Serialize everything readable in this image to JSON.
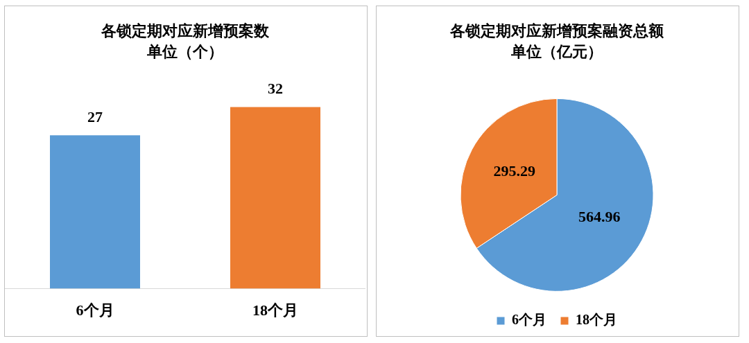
{
  "chart_data": [
    {
      "type": "bar",
      "title": "各锁定期对应新增预案数",
      "subtitle": "单位（个）",
      "categories": [
        "6个月",
        "18个月"
      ],
      "values": [
        27,
        32
      ],
      "colors": [
        "#5b9bd5",
        "#ed7d31"
      ],
      "tick_labels": "x",
      "data_labels": true,
      "grid": false,
      "legend": false
    },
    {
      "type": "pie",
      "title": "各锁定期对应新增预案融资总额",
      "subtitle": "单位（亿元）",
      "categories": [
        "6个月",
        "18个月"
      ],
      "values": [
        564.96,
        295.29
      ],
      "colors": [
        "#5b9bd5",
        "#ed7d31"
      ],
      "data_labels": true,
      "legend": "bottom"
    }
  ]
}
